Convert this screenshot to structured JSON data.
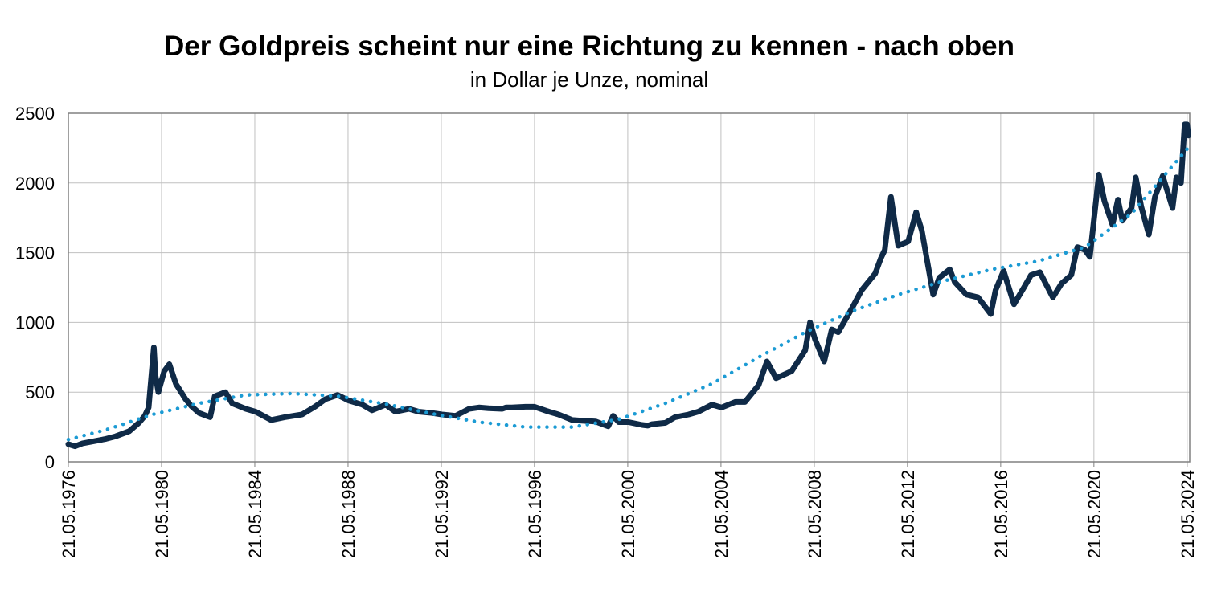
{
  "chart_data": {
    "type": "line",
    "title": "Der Goldpreis scheint nur eine Richtung zu kennen - nach oben",
    "subtitle": "in Dollar je Unze, nominal",
    "xlabel": "",
    "ylabel": "",
    "ylim": [
      0,
      2500
    ],
    "yticks": [
      "0",
      "500",
      "1000",
      "1500",
      "2000",
      "2500"
    ],
    "xticks": [
      "21.05.1976",
      "21.05.1980",
      "21.05.1984",
      "21.05.1988",
      "21.05.1992",
      "21.05.1996",
      "21.05.2000",
      "21.05.2004",
      "21.05.2008",
      "21.05.2012",
      "21.05.2016",
      "21.05.2020",
      "21.05.2024"
    ],
    "xlim": [
      "1976-05-21",
      "2024-06-30"
    ],
    "grid": true,
    "legend": "none",
    "colors": {
      "price": "#0f2a47",
      "trend": "#1c9bd4",
      "grid": "#c0c0c0",
      "frame": "#808080"
    },
    "series": [
      {
        "style": "solid",
        "x": [
          "1976-05-21",
          "1976-09-01",
          "1977-01-01",
          "1977-06-01",
          "1978-01-01",
          "1978-06-01",
          "1979-01-01",
          "1979-06-01",
          "1979-09-01",
          "1979-11-01",
          "1980-01-21",
          "1980-02-15",
          "1980-04-01",
          "1980-07-01",
          "1980-09-20",
          "1981-01-01",
          "1981-06-01",
          "1981-09-01",
          "1982-01-01",
          "1982-06-21",
          "1982-09-01",
          "1983-02-15",
          "1983-06-01",
          "1984-01-01",
          "1984-06-01",
          "1985-02-01",
          "1985-09-01",
          "1986-06-01",
          "1987-01-01",
          "1987-06-01",
          "1987-12-10",
          "1988-06-01",
          "1989-01-01",
          "1989-06-01",
          "1990-01-01",
          "1990-06-01",
          "1991-01-01",
          "1991-06-01",
          "1992-01-01",
          "1992-06-01",
          "1993-01-01",
          "1993-08-01",
          "1994-01-01",
          "1994-06-01",
          "1995-01-01",
          "1995-03-01",
          "1995-06-01",
          "1996-01-01",
          "1996-05-21",
          "1997-01-01",
          "1997-06-01",
          "1998-01-01",
          "1998-06-01",
          "1999-01-01",
          "1999-07-20",
          "1999-10-05",
          "2000-01-01",
          "2000-06-01",
          "2001-01-01",
          "2001-04-01",
          "2001-06-01",
          "2002-01-01",
          "2002-06-01",
          "2003-01-01",
          "2003-06-01",
          "2004-01-01",
          "2004-06-01",
          "2005-01-01",
          "2005-06-01",
          "2006-01-01",
          "2006-05-12",
          "2006-10-01",
          "2007-06-01",
          "2008-01-01",
          "2008-03-17",
          "2008-06-01",
          "2008-10-24",
          "2009-02-20",
          "2009-06-01",
          "2010-01-01",
          "2010-06-01",
          "2011-01-01",
          "2011-04-01",
          "2011-06-01",
          "2011-09-05",
          "2011-12-29",
          "2012-06-01",
          "2012-10-04",
          "2013-01-01",
          "2013-04-15",
          "2013-06-28",
          "2013-10-01",
          "2014-03-15",
          "2014-06-01",
          "2014-12-01",
          "2015-06-01",
          "2015-12-17",
          "2016-03-01",
          "2016-07-06",
          "2016-12-15",
          "2017-06-01",
          "2017-09-08",
          "2018-01-25",
          "2018-08-16",
          "2019-01-01",
          "2019-06-01",
          "2019-09-04",
          "2020-01-01",
          "2020-03-19",
          "2020-08-06",
          "2020-11-01",
          "2021-03-08",
          "2021-06-01",
          "2021-08-09",
          "2022-01-01",
          "2022-03-08",
          "2022-06-01",
          "2022-09-28",
          "2023-01-01",
          "2023-05-04",
          "2023-10-05",
          "2023-12-04",
          "2024-02-14",
          "2024-04-12",
          "2024-05-20",
          "2024-06-10"
        ],
        "values": [
          127,
          112,
          133,
          146,
          165,
          183,
          220,
          280,
          330,
          390,
          820,
          620,
          500,
          650,
          700,
          560,
          450,
          400,
          350,
          320,
          470,
          500,
          420,
          380,
          360,
          300,
          320,
          340,
          400,
          450,
          480,
          440,
          410,
          370,
          410,
          360,
          380,
          360,
          350,
          340,
          330,
          380,
          390,
          385,
          380,
          390,
          390,
          395,
          395,
          360,
          340,
          300,
          295,
          290,
          255,
          330,
          285,
          285,
          265,
          260,
          270,
          280,
          320,
          340,
          360,
          410,
          390,
          430,
          430,
          550,
          720,
          600,
          650,
          800,
          1000,
          880,
          720,
          950,
          930,
          1100,
          1230,
          1350,
          1460,
          1520,
          1900,
          1550,
          1580,
          1790,
          1660,
          1390,
          1200,
          1320,
          1380,
          1290,
          1200,
          1180,
          1060,
          1230,
          1370,
          1130,
          1260,
          1340,
          1360,
          1180,
          1280,
          1340,
          1540,
          1520,
          1470,
          2060,
          1870,
          1700,
          1880,
          1730,
          1820,
          2040,
          1830,
          1630,
          1900,
          2050,
          1820,
          2040,
          2000,
          2420,
          2420,
          2340
        ]
      },
      {
        "style": "dotted",
        "x": [
          "1976-05-21",
          "1978-01-01",
          "1980-01-01",
          "1982-01-01",
          "1984-01-01",
          "1986-01-01",
          "1988-01-01",
          "1990-01-01",
          "1992-01-01",
          "1994-01-01",
          "1996-01-01",
          "1998-01-01",
          "2000-01-01",
          "2002-01-01",
          "2004-01-01",
          "2006-01-01",
          "2008-01-01",
          "2010-01-01",
          "2012-01-01",
          "2014-01-01",
          "2016-01-01",
          "2018-01-01",
          "2020-01-01",
          "2022-01-01",
          "2024-06-01"
        ],
        "values": [
          160,
          230,
          340,
          420,
          480,
          490,
          470,
          415,
          345,
          285,
          250,
          250,
          305,
          420,
          560,
          750,
          930,
          1080,
          1200,
          1300,
          1380,
          1440,
          1540,
          1780,
          2250
        ]
      }
    ]
  }
}
